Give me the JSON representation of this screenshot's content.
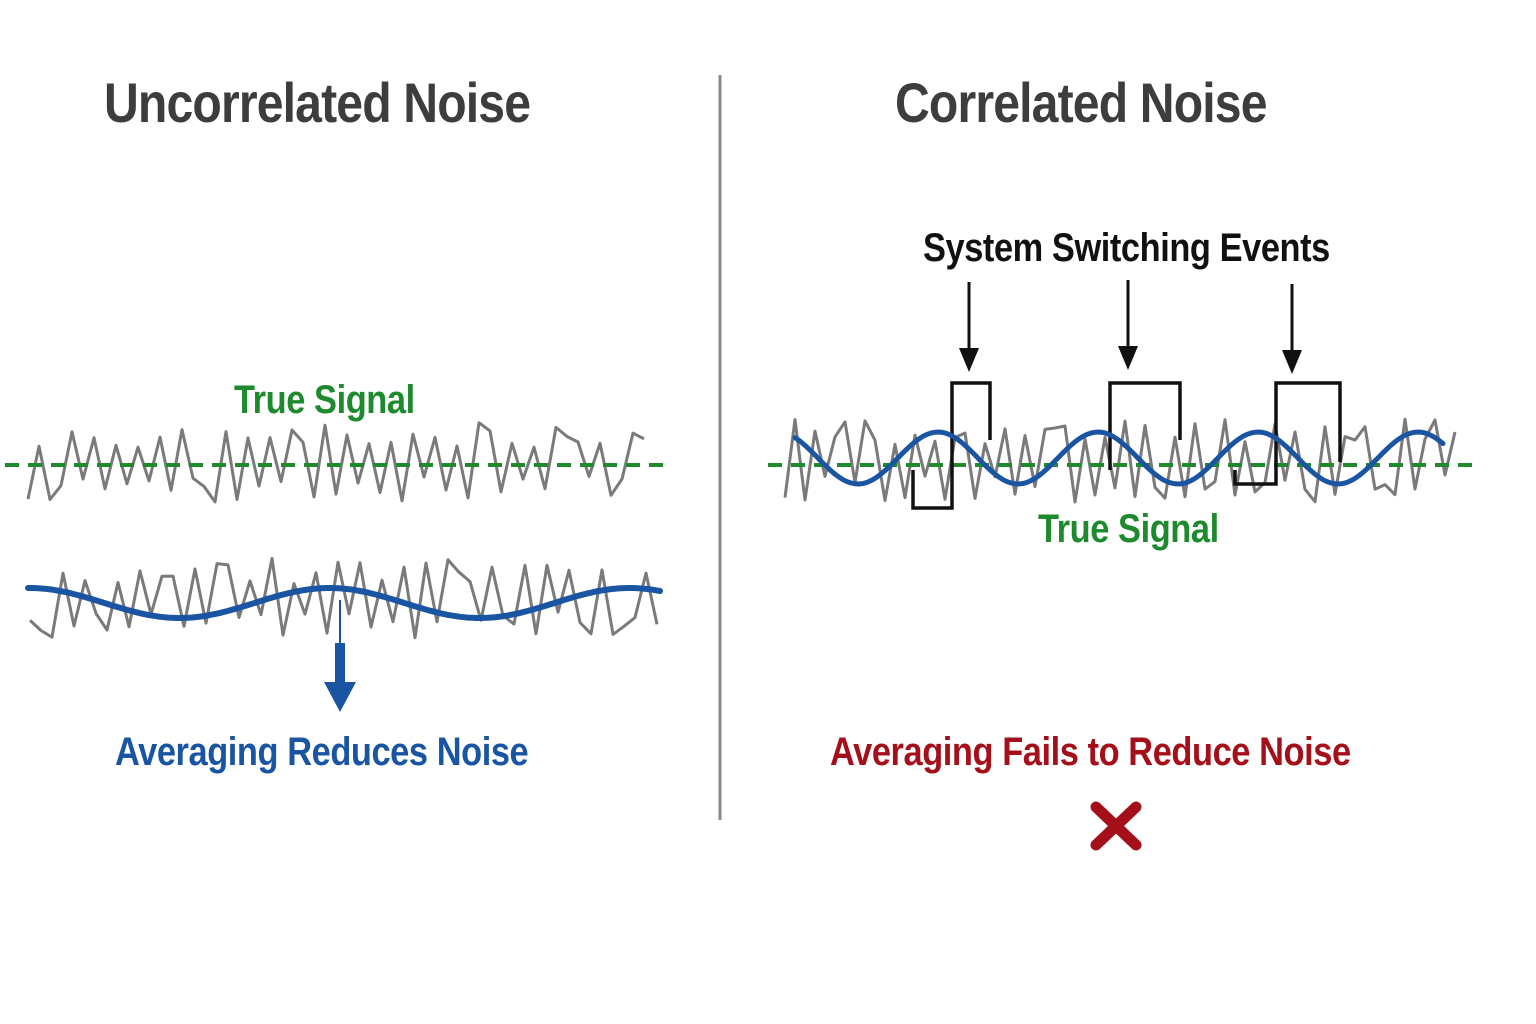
{
  "left_panel": {
    "title": "Uncorrelated Noise",
    "true_signal_label": "True Signal",
    "caption": "Averaging Reduces Noise"
  },
  "right_panel": {
    "title": "Correlated Noise",
    "events_label": "System Switching Events",
    "true_signal_label": "True Signal",
    "caption": "Averaging Fails to Reduce Noise",
    "fail_mark": "✕"
  },
  "colors": {
    "title": "#3d3d3d",
    "true_signal": "#1e8a2e",
    "noise": "#7a7a7a",
    "average": "#1a55a3",
    "events": "#111111",
    "fail": "#a50f1a",
    "divider": "#8a8a8a"
  }
}
